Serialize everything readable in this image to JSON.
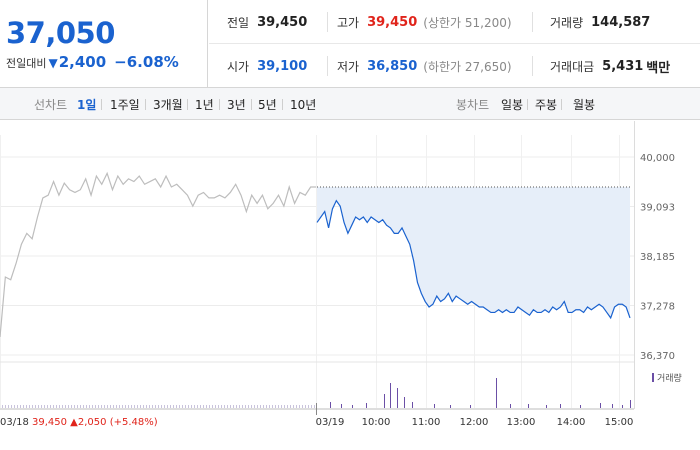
{
  "quote": {
    "price": "37,050",
    "change_label": "전일대비",
    "change_arrow": "▼",
    "change_value": "2,400",
    "change_pct": "−6.08%",
    "prev_close_label": "전일",
    "prev_close": "39,450",
    "high_label": "고가",
    "high": "39,450",
    "upper_limit": "(상한가 51,200)",
    "volume_label": "거래량",
    "volume": "144,587",
    "open_label": "시가",
    "open": "39,100",
    "low_label": "저가",
    "low": "36,850",
    "lower_limit": "(하한가 27,650)",
    "amount_label": "거래대금",
    "amount": "5,431",
    "amount_unit": "백만"
  },
  "tabs": {
    "line_label": "선차트",
    "line_tabs": [
      "1일",
      "1주일",
      "3개월",
      "1년",
      "3년",
      "5년",
      "10년"
    ],
    "line_active": 0,
    "candle_label": "봉차트",
    "candle_tabs": [
      "일봉",
      "주봉",
      "월봉"
    ]
  },
  "colors": {
    "price_line_prev": "#bdbdbd",
    "price_line_today": "#1a62cf",
    "fill_today": "#e6eef9",
    "volume_bar": "#6b4fa6",
    "down": "#1a62cf",
    "up": "#e0241b"
  },
  "chart_data": {
    "type": "line",
    "y_ticks": [
      "40,000",
      "39,093",
      "38,185",
      "37,278",
      "36,370"
    ],
    "y_tick_values": [
      40000,
      39093,
      38185,
      37278,
      36370
    ],
    "ylim": [
      36370,
      40000
    ],
    "x_ticks": [
      "03/18",
      "03/19",
      "10:00",
      "11:00",
      "12:00",
      "13:00",
      "14:00",
      "15:00"
    ],
    "prev_close": 39450,
    "volume_legend": "거래량",
    "prev_day_label": {
      "date": "03/18",
      "close": "39,450",
      "arrow": "▲",
      "change": "2,050",
      "pct": "(+5.48%)"
    },
    "series": [
      {
        "day": "03/18",
        "values": [
          36700,
          37800,
          37750,
          38050,
          38400,
          38600,
          38500,
          38900,
          39250,
          39300,
          39550,
          39300,
          39520,
          39400,
          39350,
          39400,
          39600,
          39300,
          39650,
          39500,
          39700,
          39400,
          39650,
          39500,
          39600,
          39550,
          39650,
          39500,
          39550,
          39600,
          39450,
          39650,
          39450,
          39500,
          39400,
          39300,
          39100,
          39300,
          39350,
          39250,
          39250,
          39300,
          39250,
          39350,
          39500,
          39300,
          39000,
          39300,
          39150,
          39300,
          39050,
          39150,
          39300,
          39100,
          39450,
          39150,
          39350,
          39300,
          39450,
          39450
        ]
      },
      {
        "day": "03/19",
        "values": [
          38800,
          38900,
          39000,
          38700,
          39050,
          39200,
          39100,
          38800,
          38600,
          38750,
          38900,
          38850,
          38900,
          38800,
          38900,
          38850,
          38800,
          38850,
          38750,
          38700,
          38600,
          38600,
          38700,
          38550,
          38400,
          38100,
          37700,
          37500,
          37350,
          37250,
          37300,
          37450,
          37350,
          37400,
          37500,
          37350,
          37450,
          37400,
          37350,
          37300,
          37350,
          37300,
          37250,
          37250,
          37200,
          37150,
          37150,
          37200,
          37150,
          37200,
          37150,
          37150,
          37250,
          37200,
          37150,
          37100,
          37200,
          37150,
          37150,
          37200,
          37150,
          37250,
          37200,
          37250,
          37350,
          37150,
          37150,
          37200,
          37200,
          37150,
          37250,
          37200,
          37250,
          37300,
          37250,
          37150,
          37050,
          37250,
          37300,
          37300,
          37250,
          37050
        ]
      }
    ]
  }
}
